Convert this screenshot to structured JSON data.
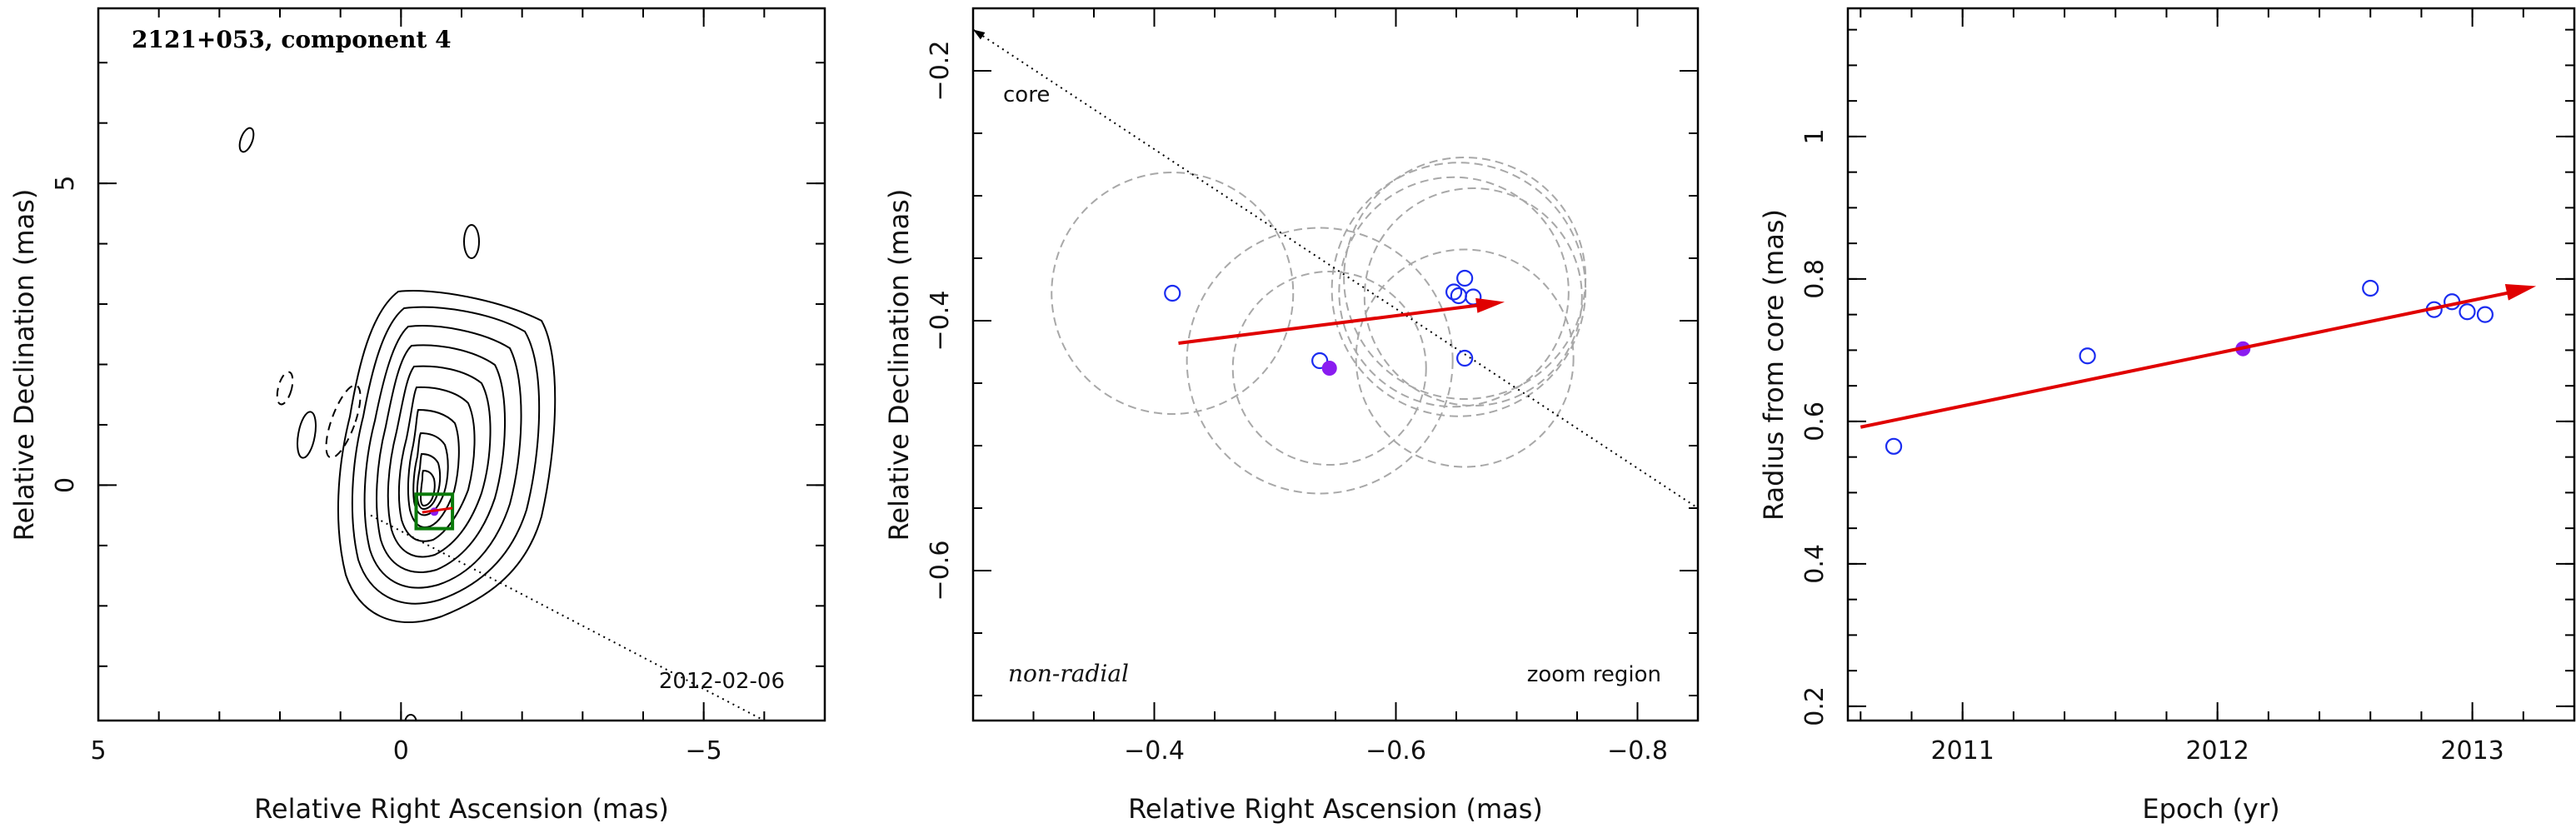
{
  "chart_data": [
    {
      "type": "contour",
      "title": "2121+053, component 4",
      "xlabel": "Relative Right Ascension (mas)",
      "ylabel": "Relative Declination (mas)",
      "xlim": [
        5,
        -7
      ],
      "ylim": [
        -3.9,
        7.9
      ],
      "xticks": [
        5,
        0,
        -5
      ],
      "yticks": [
        5,
        0
      ],
      "annotation": "2012-02-06",
      "line_to_core": [
        [
          0.5,
          -0.5
        ],
        [
          -6.0,
          -3.9
        ]
      ],
      "zoom_box": {
        "x": [
          -0.25,
          -0.85
        ],
        "y": [
          -0.15,
          -0.72
        ]
      },
      "markers": [
        {
          "x": -0.55,
          "y": -0.44,
          "color": "#8a1cf0"
        }
      ]
    },
    {
      "type": "scatter",
      "xlabel": "Relative Right Ascension (mas)",
      "ylabel": "Relative Declination (mas)",
      "xlim": [
        -0.25,
        -0.85
      ],
      "ylim": [
        -0.72,
        -0.15
      ],
      "xticks": [
        -0.4,
        -0.6,
        -0.8
      ],
      "yticks": [
        -0.2,
        -0.4,
        -0.6
      ],
      "core_label": "core",
      "left_label": "non-radial",
      "right_label": "zoom region",
      "points_open": [
        {
          "x": -0.415,
          "y": -0.378
        },
        {
          "x": -0.537,
          "y": -0.432
        },
        {
          "x": -0.648,
          "y": -0.377
        },
        {
          "x": -0.652,
          "y": -0.38
        },
        {
          "x": -0.657,
          "y": -0.366
        },
        {
          "x": -0.664,
          "y": -0.381
        },
        {
          "x": -0.657,
          "y": -0.43
        }
      ],
      "point_filled": {
        "x": -0.545,
        "y": -0.438,
        "color": "#8a1cf0"
      },
      "circles": [
        {
          "x": -0.415,
          "y": -0.378,
          "r": 0.1
        },
        {
          "x": -0.537,
          "y": -0.432,
          "r": 0.11
        },
        {
          "x": -0.545,
          "y": -0.438,
          "r": 0.08
        },
        {
          "x": -0.648,
          "y": -0.377,
          "r": 0.095
        },
        {
          "x": -0.652,
          "y": -0.375,
          "r": 0.105
        },
        {
          "x": -0.657,
          "y": -0.366,
          "r": 0.1
        },
        {
          "x": -0.664,
          "y": -0.381,
          "r": 0.09
        },
        {
          "x": -0.657,
          "y": -0.43,
          "r": 0.09
        }
      ],
      "arrow": {
        "from": [
          -0.42,
          -0.418
        ],
        "to": [
          -0.69,
          -0.385
        ]
      },
      "core_line": {
        "from": [
          -0.25,
          -0.167
        ],
        "to": [
          -0.85,
          -0.55
        ]
      }
    },
    {
      "type": "scatter",
      "xlabel": "Epoch (yr)",
      "ylabel": "Radius from core (mas)",
      "xlim": [
        2010.55,
        2013.4
      ],
      "ylim": [
        0.18,
        1.18
      ],
      "xticks": [
        2011,
        2012,
        2013
      ],
      "yticks": [
        0.2,
        0.4,
        0.6,
        0.8,
        1
      ],
      "points_open": [
        {
          "x": 2010.73,
          "y": 0.565
        },
        {
          "x": 2011.49,
          "y": 0.692
        },
        {
          "x": 2012.6,
          "y": 0.787
        },
        {
          "x": 2012.85,
          "y": 0.757
        },
        {
          "x": 2012.92,
          "y": 0.768
        },
        {
          "x": 2012.98,
          "y": 0.754
        },
        {
          "x": 2013.05,
          "y": 0.75
        }
      ],
      "point_filled": {
        "x": 2012.1,
        "y": 0.702,
        "color": "#8a1cf0"
      },
      "arrow": {
        "from": [
          2010.6,
          0.592
        ],
        "to": [
          2013.25,
          0.79
        ]
      }
    }
  ]
}
